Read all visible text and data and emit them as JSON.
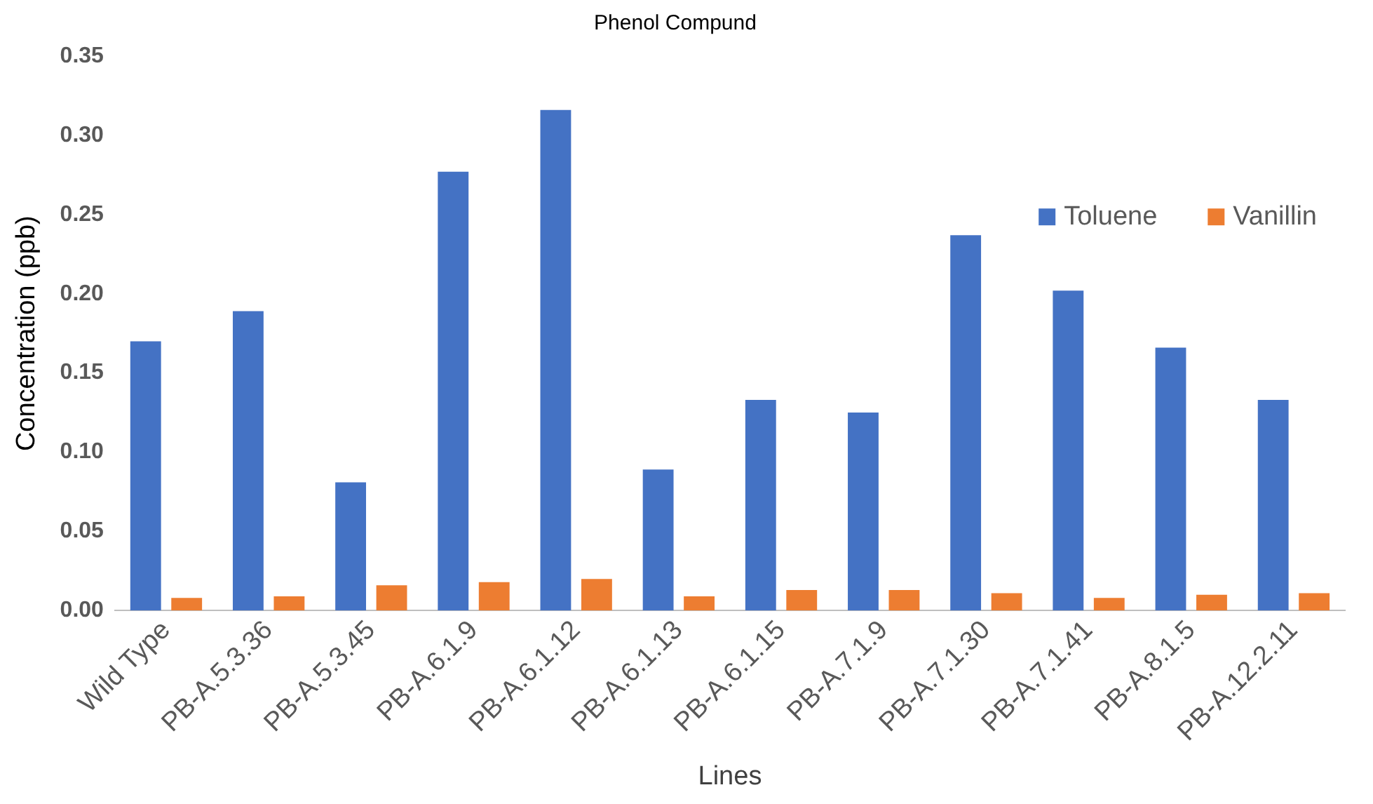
{
  "chart_data": {
    "type": "bar",
    "title": "Phenol Compund",
    "xlabel": "Lines",
    "ylabel": "Concentration (ppb)",
    "categories": [
      "Wild Type",
      "PB-A.5.3.36",
      "PB-A.5.3.45",
      "PB-A.6.1.9",
      "PB-A.6.1.12",
      "PB-A.6.1.13",
      "PB-A.6.1.15",
      "PB-A.7.1.9",
      "PB-A.7.1.30",
      "PB-A.7.1.41",
      "PB-A.8.1.5",
      "PB-A.12.2.11"
    ],
    "series": [
      {
        "name": "Toluene",
        "color": "#4472c4",
        "values": [
          0.17,
          0.189,
          0.081,
          0.277,
          0.316,
          0.089,
          0.133,
          0.125,
          0.237,
          0.202,
          0.166,
          0.133
        ]
      },
      {
        "name": "Vanillin",
        "color": "#ed7d31",
        "values": [
          0.008,
          0.009,
          0.016,
          0.018,
          0.02,
          0.009,
          0.013,
          0.013,
          0.011,
          0.008,
          0.01,
          0.011
        ]
      }
    ],
    "ylim": [
      0,
      0.35
    ],
    "yticks": [
      {
        "value": 0,
        "label": "0.00"
      },
      {
        "value": 0.05,
        "label": "0.05"
      },
      {
        "value": 0.1,
        "label": "0.10"
      },
      {
        "value": 0.15,
        "label": "0.15"
      },
      {
        "value": 0.2,
        "label": "0.20"
      },
      {
        "value": 0.25,
        "label": "0.25"
      },
      {
        "value": 0.3,
        "label": "0.30"
      },
      {
        "value": 0.35,
        "label": "0.35"
      }
    ],
    "grid": false,
    "legend": "top right"
  }
}
